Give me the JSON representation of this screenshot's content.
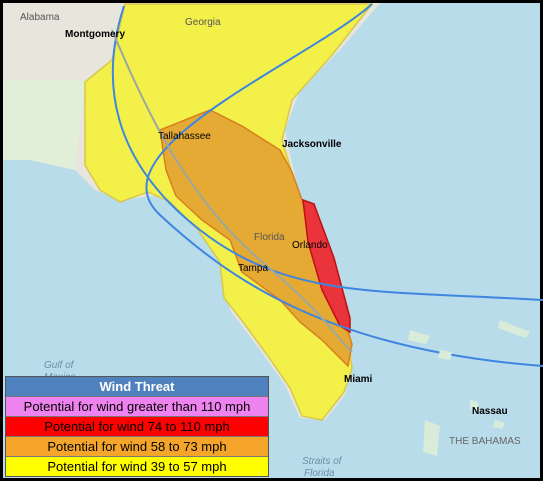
{
  "places": {
    "alabama": "Alabama",
    "montgomery": "Montgomery",
    "georgia": "Georgia",
    "tallahassee": "Tallahassee",
    "jacksonville": "Jacksonville",
    "florida": "Florida",
    "orlando": "Orlando",
    "tampa": "Tampa",
    "miami": "Miami",
    "gulf_line1": "Gulf of",
    "gulf_line2": "Mexico",
    "nassau": "Nassau",
    "bahamas": "THE BAHAMAS",
    "straits_line1": "Straits of",
    "straits_line2": "Florida"
  },
  "legend": {
    "title": "Wind Threat",
    "items": [
      "Potential for wind greater than 110 mph",
      "Potential for wind 74 to 110 mph",
      "Potential for wind 58 to 73 mph",
      "Potential for wind 39 to 57 mph"
    ]
  }
}
